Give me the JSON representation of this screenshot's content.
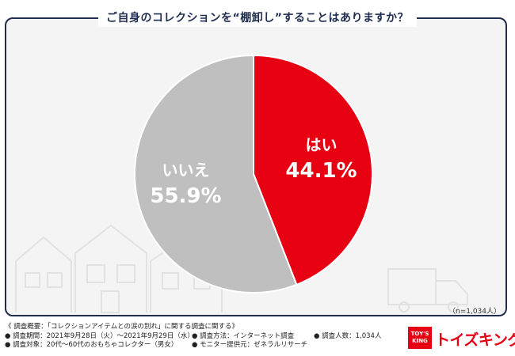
{
  "title": "ご自身のコレクションを“棚卸し”することはありますか？",
  "sample_note": "（n=1,034人）",
  "colors": {
    "yes": "#e60012",
    "no": "#bfbfbf",
    "frame": "#1f2d4f",
    "background": "#f4f4f4"
  },
  "chart_data": {
    "type": "pie",
    "title": "ご自身のコレクションを“棚卸し”することはありますか？",
    "slices": [
      {
        "label": "はい",
        "value": 44.1,
        "display": "44.1%"
      },
      {
        "label": "いいえ",
        "value": 55.9,
        "display": "55.9%"
      }
    ],
    "start_angle_deg": 0,
    "direction": "clockwise",
    "legend": "none"
  },
  "footer": {
    "summary": "《 調査概要：「コレクションアイテムとの涙の別れ」に関する調査に関する》",
    "items": [
      "● 調査期間：2021年9月28日（火）～2021年9月29日（水）",
      "● 調査方法：インターネット調査",
      "● 調査人数：1,034人",
      "● 調査対象：20代～60代のおもちゃコレクター（男女）",
      "● モニター提供元：ゼネラルリサーチ"
    ]
  },
  "logo": {
    "badge_line1": "TOY'S",
    "badge_line2": "KING",
    "text": "トイズキング"
  }
}
